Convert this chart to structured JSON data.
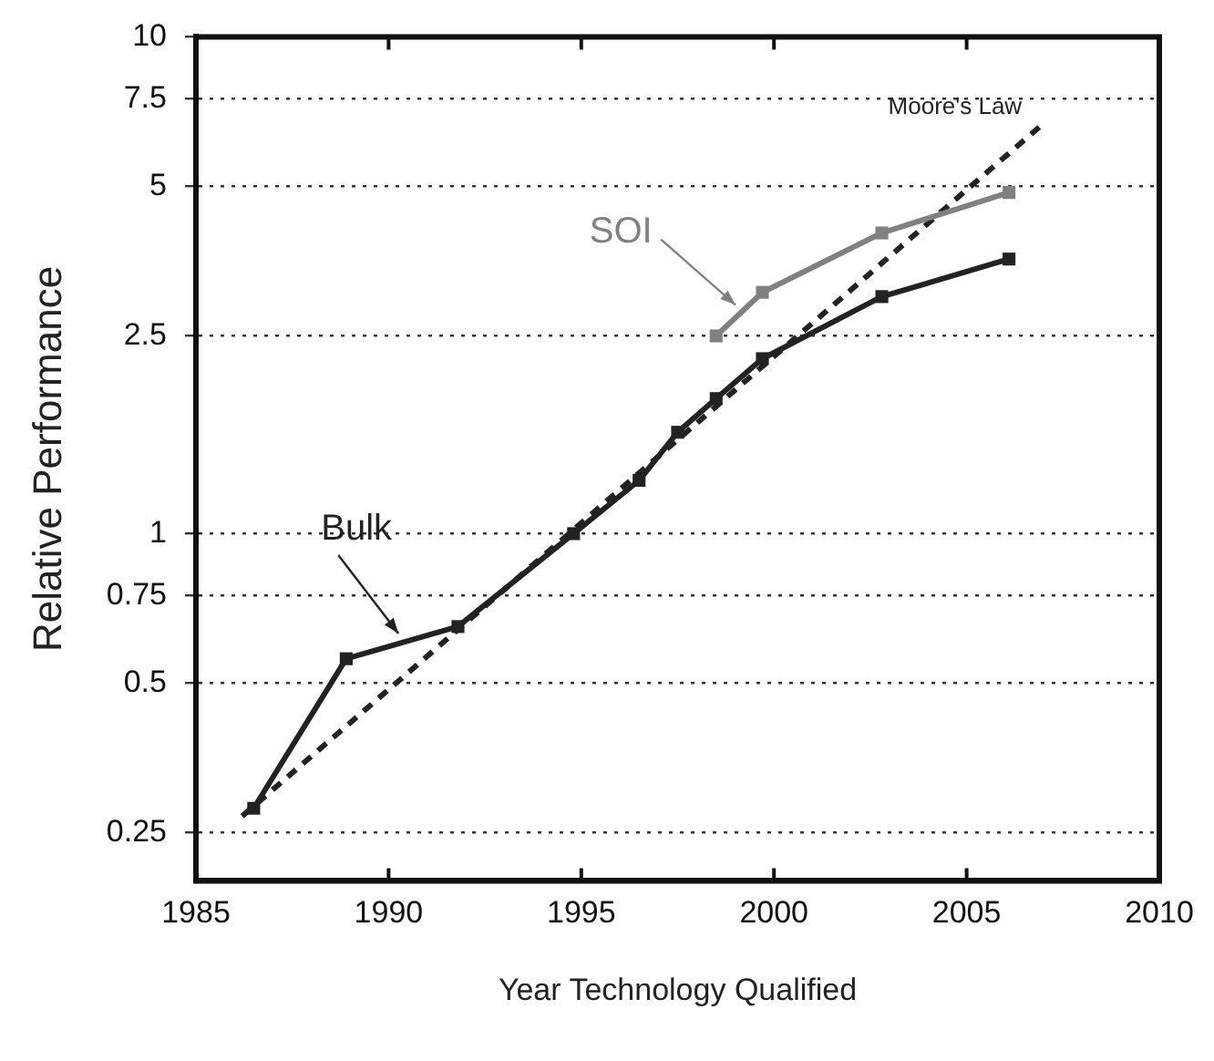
{
  "chart_data": {
    "type": "line",
    "xlabel": "Year Technology Qualified",
    "ylabel": "Relative Performance",
    "log": "y",
    "grid": "y",
    "legend": false,
    "marker": "square",
    "line_style": "solid",
    "xlim": [
      1985,
      2010
    ],
    "xticks": [
      1985,
      1990,
      1995,
      2000,
      2005,
      2010
    ],
    "ylim": [
      0.2,
      10
    ],
    "yticks": [
      0.25,
      0.5,
      0.75,
      1,
      2.5,
      5,
      7.5,
      10
    ],
    "series": [
      {
        "name": "Bulk",
        "color": "#222222",
        "x": [
          1986.5,
          1988.9,
          1991.8,
          1994.8,
          1996.5,
          1997.5,
          1998.5,
          1999.7,
          2002.8,
          2006.1
        ],
        "values": [
          0.28,
          0.56,
          0.65,
          1.0,
          1.28,
          1.6,
          1.87,
          2.25,
          3.0,
          3.57
        ]
      },
      {
        "name": "SOI",
        "color": "#808080",
        "x": [
          1998.5,
          1999.7,
          2002.8,
          2006.1
        ],
        "values": [
          2.5,
          3.06,
          4.03,
          4.86
        ]
      },
      {
        "name": "Moore's Law",
        "color": "#222222",
        "marker": "none",
        "line_style": "dashed",
        "x": [
          1986.2,
          2007.0
        ],
        "values": [
          0.27,
          6.7
        ]
      }
    ]
  }
}
